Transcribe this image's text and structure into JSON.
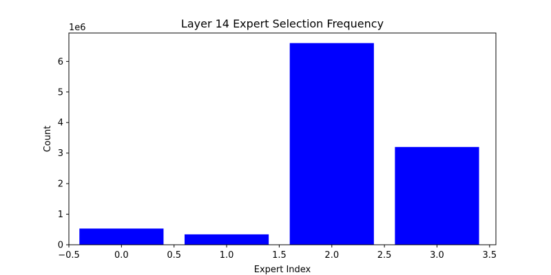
{
  "chart_data": {
    "type": "bar",
    "title": "Layer 14 Expert Selection Frequency",
    "xlabel": "Expert Index",
    "ylabel": "Count",
    "y_offset_label": "1e6",
    "x": [
      0,
      1,
      2,
      3
    ],
    "values": [
      530000,
      340000,
      6600000,
      3200000
    ],
    "bar_width": 0.8,
    "bar_color": "#0000ff",
    "xlim": [
      -0.5,
      3.56
    ],
    "ylim": [
      0,
      6930000
    ],
    "xticks": [
      -0.5,
      0.0,
      0.5,
      1.0,
      1.5,
      2.0,
      2.5,
      3.0,
      3.5
    ],
    "xtick_labels": [
      "−0.5",
      "0.0",
      "0.5",
      "1.0",
      "1.5",
      "2.0",
      "2.5",
      "3.0",
      "3.5"
    ],
    "yticks": [
      0,
      1000000,
      2000000,
      3000000,
      4000000,
      5000000,
      6000000
    ],
    "ytick_labels": [
      "0",
      "1",
      "2",
      "3",
      "4",
      "5",
      "6"
    ],
    "grid": false,
    "legend": "none"
  }
}
